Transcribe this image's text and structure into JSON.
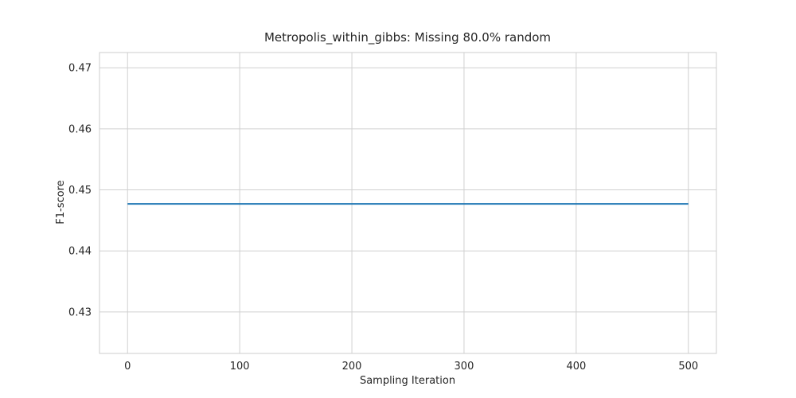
{
  "chart_data": {
    "type": "line",
    "title": "Metropolis_within_gibbs: Missing 80.0% random",
    "xlabel": "Sampling Iteration",
    "ylabel": "F1-score",
    "xlim": [
      -25,
      525
    ],
    "ylim": [
      0.4232,
      0.4725
    ],
    "xticks": [
      0,
      100,
      200,
      300,
      400,
      500
    ],
    "xtick_labels": [
      "0",
      "100",
      "200",
      "300",
      "400",
      "500"
    ],
    "yticks": [
      0.43,
      0.44,
      0.45,
      0.46,
      0.47
    ],
    "ytick_labels": [
      "0.43",
      "0.44",
      "0.45",
      "0.46",
      "0.47"
    ],
    "grid": true,
    "series": [
      {
        "color": "#1f77b4",
        "x": [
          0,
          100,
          200,
          300,
          400,
          500
        ],
        "y": [
          0.4477,
          0.4477,
          0.4477,
          0.4477,
          0.4477,
          0.4477
        ]
      }
    ],
    "colors": {
      "grid": "#d0d0d0",
      "frame": "#cccccc",
      "text": "#262626"
    }
  }
}
